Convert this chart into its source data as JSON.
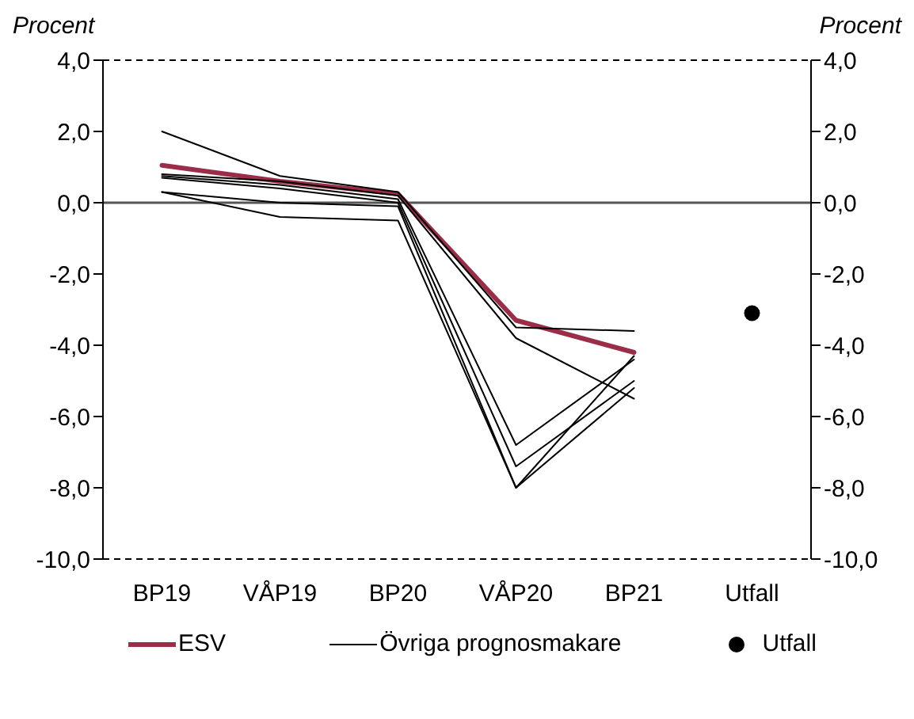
{
  "chart_data": {
    "type": "line",
    "ylabel": "Procent",
    "y2label": "Procent",
    "categories": [
      "BP19",
      "VÅP19",
      "BP20",
      "VÅP20",
      "BP21",
      "Utfall"
    ],
    "series": [
      {
        "name": "ESV",
        "color": "#9b2d48",
        "values": [
          1.05,
          0.6,
          0.25,
          -3.3,
          -4.2,
          null
        ]
      },
      {
        "name": "Övriga prognosmakare",
        "color": "#000000",
        "values": [
          2.0,
          0.75,
          0.3,
          -3.5,
          -3.6,
          null
        ]
      },
      {
        "color": "#000000",
        "values": [
          0.8,
          0.6,
          0.2,
          -3.8,
          -5.5,
          null
        ]
      },
      {
        "color": "#000000",
        "values": [
          0.75,
          0.5,
          0.1,
          -6.8,
          -4.4,
          null
        ]
      },
      {
        "color": "#000000",
        "values": [
          0.7,
          0.4,
          0.0,
          -7.4,
          -5.0,
          null
        ]
      },
      {
        "color": "#000000",
        "values": [
          0.3,
          0.0,
          -0.1,
          -8.0,
          -4.3,
          null
        ]
      },
      {
        "color": "#000000",
        "values": [
          0.3,
          -0.4,
          -0.5,
          -8.0,
          -5.2,
          null
        ]
      },
      {
        "name": "Utfall",
        "type": "scatter",
        "marker": "circle",
        "color": "#000000",
        "values": [
          null,
          null,
          null,
          null,
          null,
          -3.1
        ]
      }
    ],
    "ylim": [
      -10,
      4
    ],
    "yticks": [
      {
        "value": -10,
        "label": "-10,0"
      },
      {
        "value": -8,
        "label": "-8,0"
      },
      {
        "value": -6,
        "label": "-6,0"
      },
      {
        "value": -4,
        "label": "-4,0"
      },
      {
        "value": -2,
        "label": "-2,0"
      },
      {
        "value": 0,
        "label": "0,0"
      },
      {
        "value": 2,
        "label": "2,0"
      },
      {
        "value": 4,
        "label": "4,0"
      }
    ],
    "y2lim": [
      -10,
      4
    ],
    "y2ticks": [
      {
        "value": -10,
        "label": "-10,0"
      },
      {
        "value": -8,
        "label": "-8,0"
      },
      {
        "value": -6,
        "label": "-6,0"
      },
      {
        "value": -4,
        "label": "-4,0"
      },
      {
        "value": -2,
        "label": "-2,0"
      },
      {
        "value": 0,
        "label": "0,0"
      },
      {
        "value": 2,
        "label": "2,0"
      },
      {
        "value": 4,
        "label": "4,0"
      }
    ],
    "grid": "y",
    "legend": "bottom"
  }
}
